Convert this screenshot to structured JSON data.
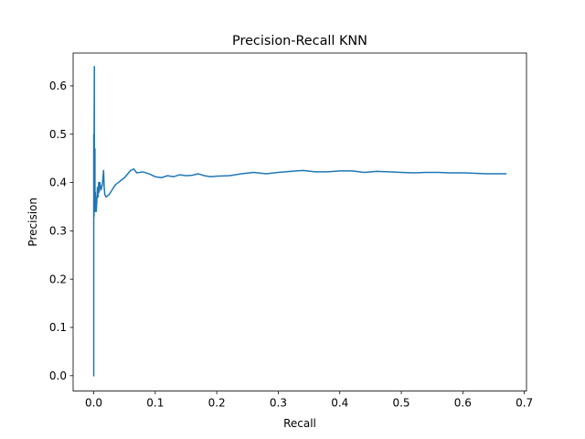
{
  "chart_data": {
    "type": "line",
    "title": "Precision-Recall KNN",
    "xlabel": "Recall",
    "ylabel": "Precision",
    "xlim": [
      -0.0335,
      0.7035
    ],
    "ylim": [
      -0.0318,
      0.668
    ],
    "xticks": [
      0.0,
      0.1,
      0.2,
      0.3,
      0.4,
      0.5,
      0.6,
      0.7
    ],
    "xtick_labels": [
      "0.0",
      "0.1",
      "0.2",
      "0.3",
      "0.4",
      "0.5",
      "0.6",
      "0.7"
    ],
    "yticks": [
      0.0,
      0.1,
      0.2,
      0.3,
      0.4,
      0.5,
      0.6
    ],
    "ytick_labels": [
      "0.0",
      "0.1",
      "0.2",
      "0.3",
      "0.4",
      "0.5",
      "0.6"
    ],
    "grid": false,
    "series": [
      {
        "color": "#1f77b4",
        "x": [
          0.0,
          0.0,
          0.0005,
          0.0005,
          0.001,
          0.001,
          0.0015,
          0.0015,
          0.002,
          0.002,
          0.0025,
          0.003,
          0.0035,
          0.004,
          0.005,
          0.006,
          0.007,
          0.008,
          0.009,
          0.01,
          0.012,
          0.014,
          0.016,
          0.017,
          0.018,
          0.02,
          0.022,
          0.025,
          0.03,
          0.035,
          0.04,
          0.05,
          0.06,
          0.065,
          0.07,
          0.08,
          0.09,
          0.1,
          0.11,
          0.12,
          0.13,
          0.14,
          0.15,
          0.16,
          0.17,
          0.18,
          0.19,
          0.2,
          0.22,
          0.24,
          0.26,
          0.28,
          0.3,
          0.32,
          0.34,
          0.36,
          0.38,
          0.4,
          0.42,
          0.44,
          0.46,
          0.48,
          0.5,
          0.52,
          0.54,
          0.56,
          0.58,
          0.6,
          0.62,
          0.64,
          0.67
        ],
        "y": [
          0.0,
          0.5,
          0.33,
          0.45,
          0.64,
          0.34,
          0.4,
          0.36,
          0.47,
          0.34,
          0.38,
          0.35,
          0.37,
          0.34,
          0.36,
          0.39,
          0.37,
          0.4,
          0.38,
          0.4,
          0.385,
          0.395,
          0.425,
          0.39,
          0.375,
          0.37,
          0.372,
          0.375,
          0.385,
          0.395,
          0.4,
          0.41,
          0.425,
          0.428,
          0.42,
          0.422,
          0.418,
          0.412,
          0.41,
          0.414,
          0.412,
          0.416,
          0.414,
          0.415,
          0.418,
          0.414,
          0.412,
          0.413,
          0.414,
          0.418,
          0.421,
          0.418,
          0.421,
          0.423,
          0.425,
          0.422,
          0.422,
          0.424,
          0.424,
          0.421,
          0.423,
          0.422,
          0.421,
          0.42,
          0.421,
          0.421,
          0.42,
          0.42,
          0.419,
          0.418,
          0.418
        ]
      }
    ]
  }
}
